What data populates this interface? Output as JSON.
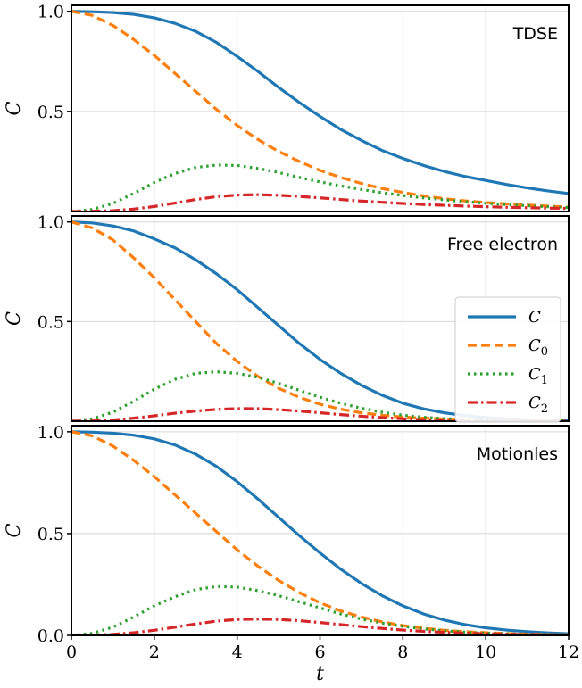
{
  "chart_data": {
    "type": "line",
    "xlabel": "t",
    "xlim": [
      0,
      12
    ],
    "xticks": [
      "0",
      "2",
      "4",
      "6",
      "8",
      "10",
      "12"
    ],
    "colors": {
      "C": "#1f77b4",
      "C0": "#ff7f0e",
      "C1": "#2ca02c",
      "C2": "#d62728"
    },
    "legend": {
      "panel": 1,
      "placement": "center-right",
      "entries": [
        {
          "label": "C",
          "sub": "",
          "series": "C",
          "style": "solid"
        },
        {
          "label": "C",
          "sub": "0",
          "series": "C0",
          "style": "dashed"
        },
        {
          "label": "C",
          "sub": "1",
          "series": "C1",
          "style": "dotted"
        },
        {
          "label": "C",
          "sub": "2",
          "series": "C2",
          "style": "dashdot"
        }
      ]
    },
    "panels": [
      {
        "title": "TDSE",
        "ylabel": "C",
        "ylim": [
          0,
          1.03
        ],
        "yticks": [
          {
            "v": 1.0,
            "label": "1.0"
          },
          {
            "v": 0.5,
            "label": "0.5"
          }
        ],
        "x": [
          0,
          0.5,
          1,
          1.5,
          2,
          2.5,
          3,
          3.5,
          4,
          4.5,
          5,
          5.5,
          6,
          6.5,
          7,
          7.5,
          8,
          8.5,
          9,
          9.5,
          10,
          10.5,
          11,
          11.5,
          12
        ],
        "series": [
          {
            "key": "C",
            "values": [
              1.0,
              0.998,
              0.994,
              0.985,
              0.968,
              0.94,
              0.9,
              0.845,
              0.775,
              0.7,
              0.62,
              0.545,
              0.475,
              0.41,
              0.355,
              0.305,
              0.265,
              0.23,
              0.2,
              0.175,
              0.155,
              0.135,
              0.118,
              0.103,
              0.09
            ]
          },
          {
            "key": "C0",
            "values": [
              1.0,
              0.98,
              0.93,
              0.86,
              0.78,
              0.69,
              0.6,
              0.51,
              0.43,
              0.36,
              0.3,
              0.25,
              0.205,
              0.17,
              0.14,
              0.115,
              0.095,
              0.078,
              0.064,
              0.053,
              0.045,
              0.038,
              0.032,
              0.027,
              0.022
            ]
          },
          {
            "key": "C1",
            "values": [
              0.0,
              0.01,
              0.04,
              0.09,
              0.145,
              0.19,
              0.22,
              0.232,
              0.23,
              0.215,
              0.195,
              0.17,
              0.148,
              0.128,
              0.11,
              0.094,
              0.08,
              0.068,
              0.058,
              0.049,
              0.041,
              0.034,
              0.029,
              0.024,
              0.02
            ]
          },
          {
            "key": "C2",
            "values": [
              0.0,
              0.001,
              0.004,
              0.012,
              0.025,
              0.042,
              0.06,
              0.074,
              0.082,
              0.084,
              0.081,
              0.075,
              0.068,
              0.06,
              0.052,
              0.046,
              0.04,
              0.035,
              0.031,
              0.027,
              0.024,
              0.021,
              0.019,
              0.017,
              0.015
            ]
          }
        ]
      },
      {
        "title": "Free electron",
        "ylabel": "C",
        "ylim": [
          0,
          1.03
        ],
        "yticks": [
          {
            "v": 1.0,
            "label": "1.0"
          },
          {
            "v": 0.5,
            "label": "0.5"
          }
        ],
        "x": [
          0,
          0.5,
          1,
          1.5,
          2,
          2.5,
          3,
          3.5,
          4,
          4.5,
          5,
          5.5,
          6,
          6.5,
          7,
          7.5,
          8,
          8.5,
          9,
          9.5,
          10,
          10.5,
          11,
          11.5,
          12
        ],
        "series": [
          {
            "key": "C",
            "values": [
              1.0,
              0.995,
              0.98,
              0.955,
              0.915,
              0.87,
              0.81,
              0.74,
              0.66,
              0.57,
              0.48,
              0.39,
              0.31,
              0.24,
              0.18,
              0.13,
              0.09,
              0.062,
              0.042,
              0.028,
              0.018,
              0.012,
              0.008,
              0.005,
              0.003
            ]
          },
          {
            "key": "C0",
            "values": [
              1.0,
              0.97,
              0.91,
              0.82,
              0.72,
              0.61,
              0.5,
              0.39,
              0.3,
              0.225,
              0.165,
              0.12,
              0.085,
              0.06,
              0.042,
              0.03,
              0.021,
              0.015,
              0.011,
              0.008,
              0.006,
              0.004,
              0.003,
              0.002,
              0.001
            ]
          },
          {
            "key": "C1",
            "values": [
              0.0,
              0.012,
              0.045,
              0.1,
              0.16,
              0.21,
              0.24,
              0.248,
              0.24,
              0.22,
              0.19,
              0.155,
              0.12,
              0.09,
              0.065,
              0.045,
              0.03,
              0.02,
              0.013,
              0.009,
              0.006,
              0.004,
              0.003,
              0.002,
              0.001
            ]
          },
          {
            "key": "C2",
            "values": [
              0.0,
              0.001,
              0.006,
              0.015,
              0.027,
              0.04,
              0.051,
              0.059,
              0.063,
              0.063,
              0.058,
              0.051,
              0.042,
              0.033,
              0.025,
              0.018,
              0.012,
              0.008,
              0.005,
              0.003,
              0.002,
              0.001,
              0.001,
              0.0,
              0.0
            ]
          }
        ]
      },
      {
        "title": "Motionles",
        "ylabel": "C",
        "ylim": [
          0,
          1.03
        ],
        "yticks": [
          {
            "v": 1.0,
            "label": "1.0"
          },
          {
            "v": 0.5,
            "label": "0.5"
          },
          {
            "v": 0.0,
            "label": "0.0"
          }
        ],
        "x": [
          0,
          0.5,
          1,
          1.5,
          2,
          2.5,
          3,
          3.5,
          4,
          4.5,
          5,
          5.5,
          6,
          6.5,
          7,
          7.5,
          8,
          8.5,
          9,
          9.5,
          10,
          10.5,
          11,
          11.5,
          12
        ],
        "series": [
          {
            "key": "C",
            "values": [
              1.0,
              0.998,
              0.993,
              0.983,
              0.965,
              0.935,
              0.89,
              0.83,
              0.755,
              0.67,
              0.58,
              0.49,
              0.405,
              0.325,
              0.255,
              0.195,
              0.145,
              0.105,
              0.075,
              0.053,
              0.037,
              0.026,
              0.018,
              0.012,
              0.008
            ]
          },
          {
            "key": "C0",
            "values": [
              1.0,
              0.98,
              0.93,
              0.86,
              0.78,
              0.69,
              0.6,
              0.51,
              0.42,
              0.34,
              0.27,
              0.21,
              0.16,
              0.12,
              0.09,
              0.066,
              0.048,
              0.035,
              0.025,
              0.018,
              0.013,
              0.009,
              0.006,
              0.004,
              0.003
            ]
          },
          {
            "key": "C1",
            "values": [
              0.0,
              0.01,
              0.04,
              0.09,
              0.145,
              0.19,
              0.225,
              0.24,
              0.237,
              0.22,
              0.195,
              0.165,
              0.135,
              0.105,
              0.08,
              0.06,
              0.044,
              0.032,
              0.023,
              0.016,
              0.011,
              0.008,
              0.005,
              0.004,
              0.003
            ]
          },
          {
            "key": "C2",
            "values": [
              0.0,
              0.001,
              0.005,
              0.013,
              0.025,
              0.04,
              0.056,
              0.07,
              0.078,
              0.08,
              0.078,
              0.072,
              0.063,
              0.053,
              0.043,
              0.034,
              0.026,
              0.02,
              0.015,
              0.011,
              0.008,
              0.006,
              0.004,
              0.003,
              0.002
            ]
          }
        ]
      }
    ]
  }
}
